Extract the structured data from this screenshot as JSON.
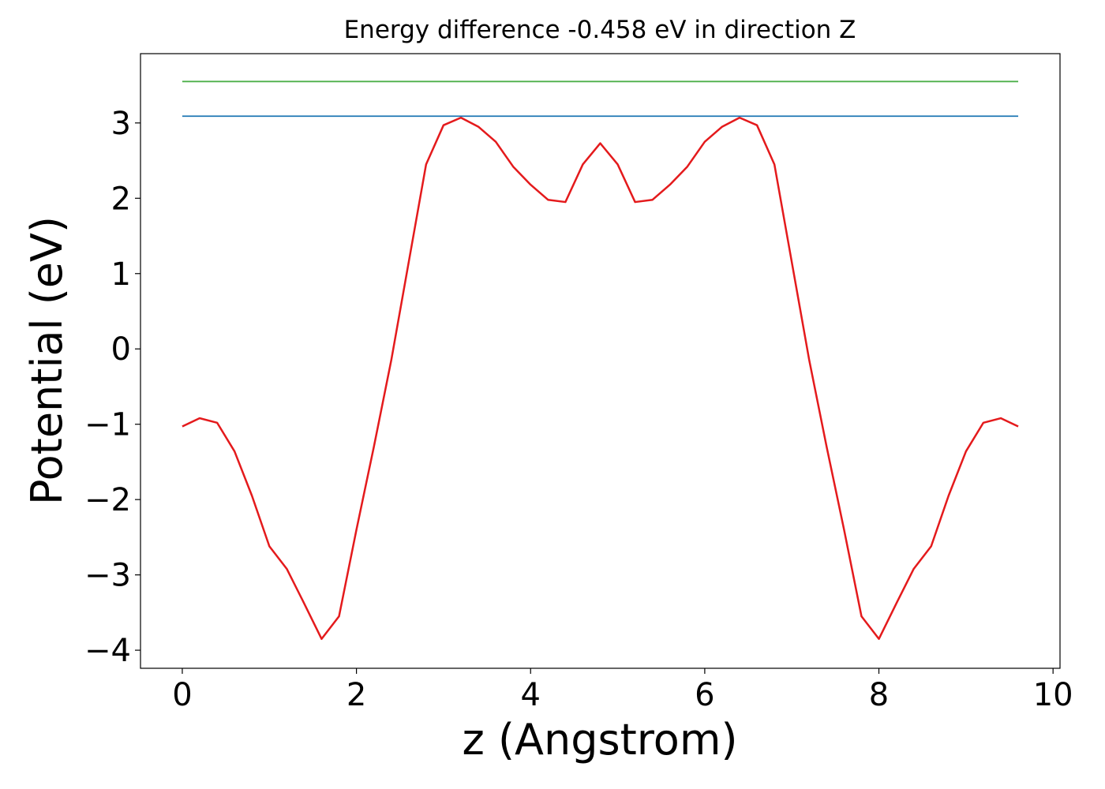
{
  "chart_data": {
    "type": "line",
    "title": "Energy difference -0.458 eV in direction Z",
    "xlabel": "z (Angstrom)",
    "ylabel": "Potential (eV)",
    "series": [
      {
        "color": "#e41a1c",
        "x": [
          0,
          0.2,
          0.4,
          0.6,
          0.8,
          1.0,
          1.2,
          1.4,
          1.6,
          1.8,
          2.0,
          2.2,
          2.4,
          2.6,
          2.8,
          3.0,
          3.2,
          3.4,
          3.6,
          3.8,
          4.0,
          4.2,
          4.4,
          4.6,
          4.8,
          5.0,
          5.2,
          5.4,
          5.6,
          5.8,
          6.0,
          6.2,
          6.4,
          6.6,
          6.8,
          7.0,
          7.2,
          7.4,
          7.6,
          7.8,
          8.0,
          8.2,
          8.4,
          8.6,
          8.8,
          9.0,
          9.2,
          9.4,
          9.6
        ],
        "values": [
          -1.03,
          -0.92,
          -0.98,
          -1.36,
          -1.95,
          -2.62,
          -2.92,
          -3.38,
          -3.85,
          -3.55,
          -2.4,
          -1.3,
          -0.15,
          1.15,
          2.45,
          2.97,
          3.07,
          2.95,
          2.75,
          2.42,
          2.18,
          1.98,
          1.95,
          2.45,
          2.73,
          2.45,
          1.95,
          1.98,
          2.18,
          2.42,
          2.75,
          2.95,
          3.07,
          2.97,
          2.45,
          1.15,
          -0.15,
          -1.3,
          -2.4,
          -3.55,
          -3.85,
          -3.38,
          -2.92,
          -2.62,
          -1.95,
          -1.36,
          -0.98,
          -0.92,
          -1.03
        ]
      },
      {
        "color": "#1f77b4",
        "x": [
          0,
          9.6
        ],
        "values": [
          3.09,
          3.09
        ]
      },
      {
        "color": "#4daf4a",
        "x": [
          0,
          9.6
        ],
        "values": [
          3.55,
          3.55
        ]
      }
    ],
    "xlim": [
      -0.48,
      10.08
    ],
    "ylim": [
      -4.24,
      3.92
    ],
    "xticks": [
      0,
      2,
      4,
      6,
      8,
      10
    ],
    "yticks": [
      {
        "value": -4,
        "label": "−4"
      },
      {
        "value": -3,
        "label": "−3"
      },
      {
        "value": -2,
        "label": "−2"
      },
      {
        "value": -1,
        "label": "−1"
      },
      0,
      1,
      2,
      3
    ],
    "grid": false
  }
}
